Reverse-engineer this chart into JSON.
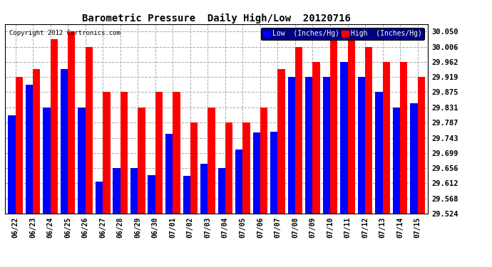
{
  "title": "Barometric Pressure  Daily High/Low  20120716",
  "copyright": "Copyright 2012 Cartronics.com",
  "legend_low": "Low  (Inches/Hg)",
  "legend_high": "High  (Inches/Hg)",
  "dates": [
    "06/22",
    "06/23",
    "06/24",
    "06/25",
    "06/26",
    "06/27",
    "06/28",
    "06/29",
    "06/30",
    "07/01",
    "07/02",
    "07/03",
    "07/04",
    "07/05",
    "07/06",
    "07/07",
    "07/08",
    "07/09",
    "07/10",
    "07/11",
    "07/12",
    "07/13",
    "07/14",
    "07/15"
  ],
  "low_values": [
    29.808,
    29.897,
    29.831,
    29.941,
    29.831,
    29.617,
    29.656,
    29.656,
    29.635,
    29.755,
    29.634,
    29.668,
    29.656,
    29.71,
    29.758,
    29.76,
    29.92,
    29.92,
    29.92,
    29.963,
    29.92,
    29.875,
    29.831,
    29.843
  ],
  "high_values": [
    29.919,
    29.941,
    30.028,
    30.05,
    30.006,
    29.875,
    29.875,
    29.831,
    29.875,
    29.875,
    29.787,
    29.831,
    29.787,
    29.787,
    29.831,
    29.941,
    30.006,
    29.963,
    30.05,
    30.05,
    30.006,
    29.963,
    29.963,
    29.919
  ],
  "ylim_min": 29.524,
  "ylim_max": 30.072,
  "yticks": [
    29.524,
    29.568,
    29.612,
    29.656,
    29.699,
    29.743,
    29.787,
    29.831,
    29.875,
    29.919,
    29.962,
    30.006,
    30.05
  ],
  "low_color": "#0000FF",
  "high_color": "#FF0000",
  "bg_color": "#FFFFFF",
  "grid_color": "#AAAAAA",
  "bar_width": 0.42
}
